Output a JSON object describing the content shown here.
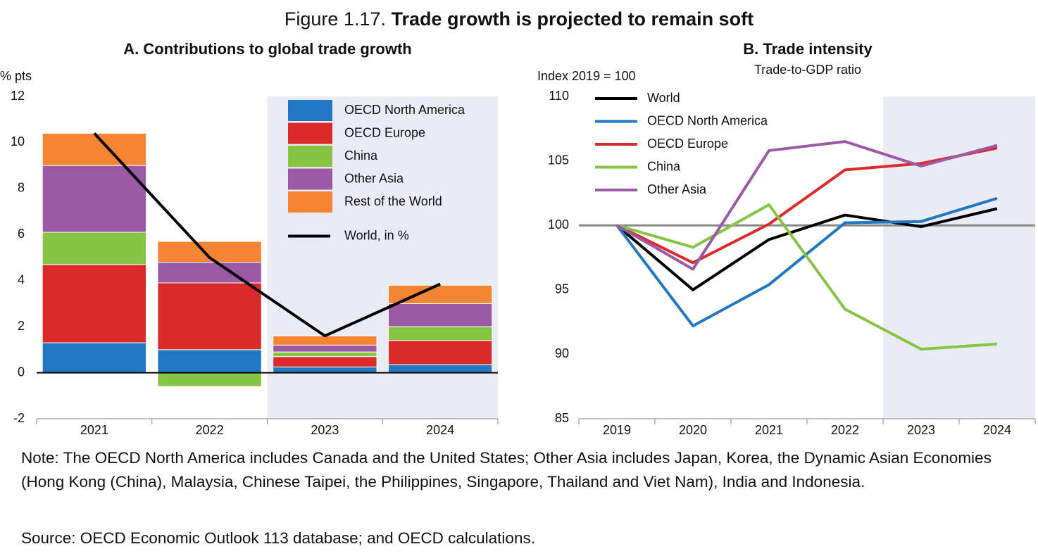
{
  "figure": {
    "number": "Figure 1.17.",
    "title": "Trade growth is projected to remain soft"
  },
  "chart_data": [
    {
      "type": "bar",
      "stacked": true,
      "title": "A. Contributions to global trade growth",
      "y_label": "% pts",
      "categories": [
        "2021",
        "2022",
        "2023",
        "2024"
      ],
      "series": [
        {
          "name": "OECD North America",
          "color": "#1f78c1",
          "values": [
            1.3,
            1.0,
            0.25,
            0.35
          ]
        },
        {
          "name": "OECD Europe",
          "color": "#dc2a2a",
          "values": [
            3.4,
            2.9,
            0.45,
            1.05
          ]
        },
        {
          "name": "China",
          "color": "#86c443",
          "values": [
            1.4,
            -0.6,
            0.2,
            0.6
          ]
        },
        {
          "name": "Other Asia",
          "color": "#9b59a6",
          "values": [
            2.9,
            0.9,
            0.3,
            1.0
          ]
        },
        {
          "name": "Rest of the World",
          "color": "#f58532",
          "values": [
            1.4,
            0.9,
            0.4,
            0.8
          ]
        },
        {
          "name": "World, in %",
          "type": "line",
          "color": "#000000",
          "values": [
            10.4,
            5.0,
            1.6,
            3.85
          ]
        }
      ],
      "ylim": [
        -2,
        12
      ],
      "yticks": [
        -2,
        0,
        2,
        4,
        6,
        8,
        10,
        12
      ],
      "shade_from_index": 2,
      "shade_color": "#e9ecf5",
      "legend": "top-right"
    },
    {
      "type": "line",
      "title": "B. Trade intensity",
      "subtitle": "Trade-to-GDP ratio",
      "y_label": "Index 2019 = 100",
      "categories": [
        "2019",
        "2020",
        "2021",
        "2022",
        "2023",
        "2024"
      ],
      "series": [
        {
          "name": "World",
          "color": "#000000",
          "values": [
            100,
            95.0,
            98.9,
            100.8,
            99.9,
            101.3
          ]
        },
        {
          "name": "OECD North America",
          "color": "#1f78c1",
          "values": [
            100,
            92.2,
            95.4,
            100.2,
            100.3,
            102.1
          ]
        },
        {
          "name": "OECD Europe",
          "color": "#dc2a2a",
          "values": [
            100,
            97.1,
            100.1,
            104.3,
            104.8,
            106.0
          ]
        },
        {
          "name": "China",
          "color": "#86c443",
          "values": [
            100,
            98.3,
            101.6,
            93.5,
            90.4,
            90.8
          ]
        },
        {
          "name": "Other Asia",
          "color": "#9b59a6",
          "values": [
            100,
            96.6,
            105.8,
            106.5,
            104.6,
            106.2
          ]
        }
      ],
      "ylim": [
        85,
        110
      ],
      "yticks": [
        85,
        90,
        95,
        100,
        105,
        110
      ],
      "baseline": 100,
      "shade_from_index": 4,
      "shade_color": "#e9ecf5",
      "legend": "top-left"
    }
  ],
  "note": "Note: The OECD North America includes Canada and the United States; Other Asia includes Japan, Korea, the Dynamic Asian Economies (Hong Kong (China), Malaysia, Chinese Taipei, the Philippines, Singapore, Thailand and Viet Nam), India and Indonesia.",
  "source": "Source: OECD Economic Outlook 113 database; and OECD calculations."
}
